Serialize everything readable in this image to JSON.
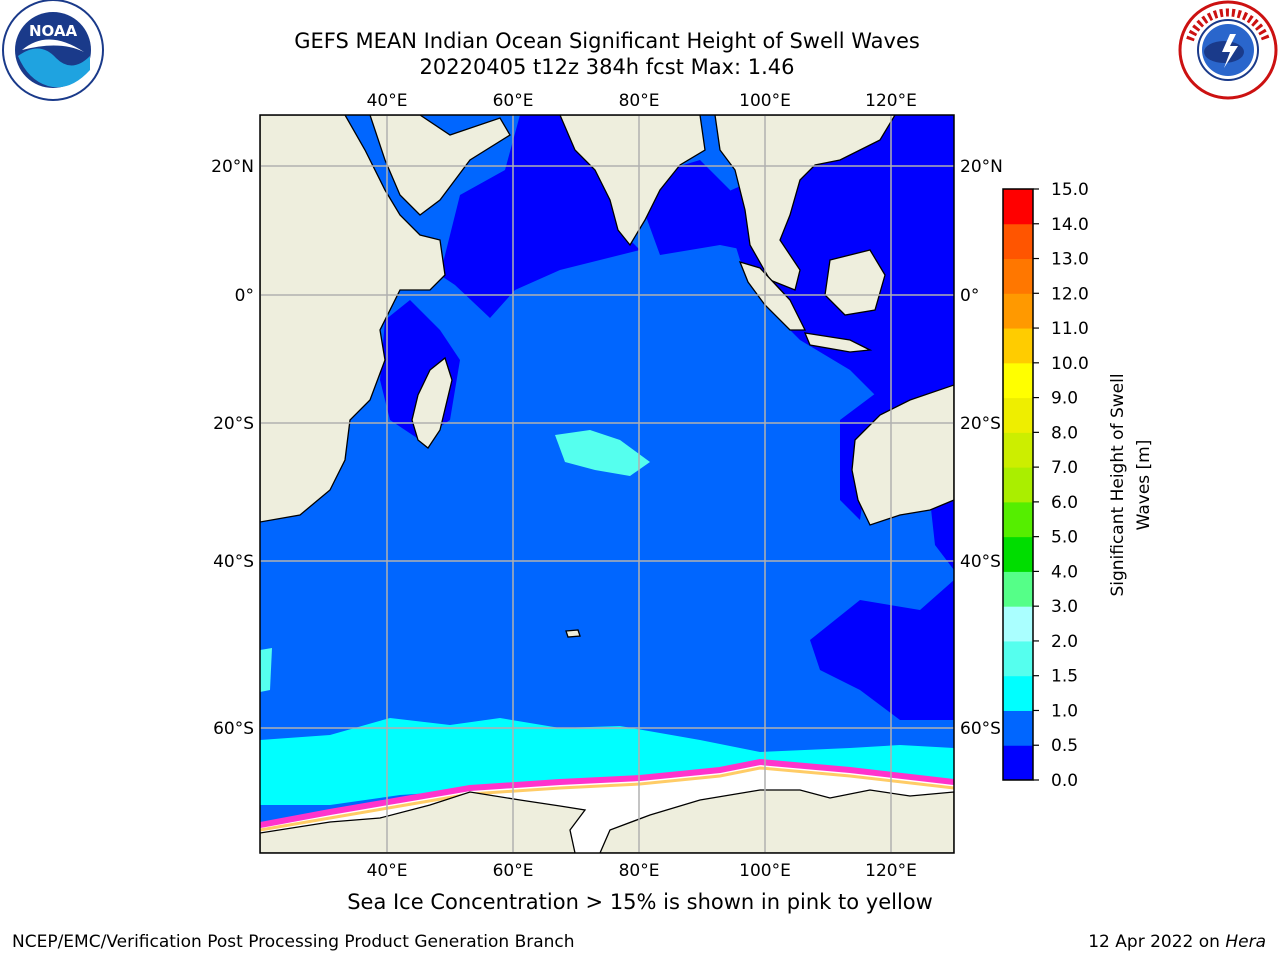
{
  "title_line1": "GEFS MEAN Indian Ocean Significant Height of Swell Waves",
  "title_line2": "20220405 t12z 384h fcst   Max: 1.46",
  "lon_ticks": [
    "40°E",
    "60°E",
    "80°E",
    "100°E",
    "120°E"
  ],
  "lat_ticks_left": [
    "20°N",
    "0°",
    "20°S",
    "40°S",
    "60°S"
  ],
  "lat_ticks_right": [
    "20°N",
    "0°",
    "20°S",
    "40°S",
    "60°S"
  ],
  "colorbar": {
    "label": "Significant Height of Swell Waves [m]",
    "ticks": [
      "0.0",
      "0.5",
      "1.0",
      "1.5",
      "2.0",
      "3.0",
      "4.0",
      "5.0",
      "6.0",
      "7.0",
      "8.0",
      "9.0",
      "10.0",
      "11.0",
      "12.0",
      "13.0",
      "14.0",
      "15.0"
    ],
    "colors": [
      "#0000ff",
      "#0066ff",
      "#00ffff",
      "#55ffee",
      "#aaffff",
      "#55ff88",
      "#00dd00",
      "#55ee00",
      "#aaee00",
      "#ccee00",
      "#eeee00",
      "#ffff00",
      "#ffcc00",
      "#ff9900",
      "#ff7700",
      "#ff5500",
      "#ff0000"
    ]
  },
  "sea_ice_note": "Sea Ice Concentration > 15% is shown in pink to yellow",
  "footer_left": "NCEP/EMC/Verification Post Processing Product Generation Branch",
  "footer_date": "12 Apr 2022 on",
  "footer_host": "Hera",
  "colors": {
    "land": "#eeeedd",
    "ocean_low": "#0000ff",
    "ocean_mid": "#0066ff",
    "swell_high": "#00ffff",
    "ice": "#ffffff",
    "ice_edge": "#ff33cc"
  },
  "logos": [
    "noaa-logo",
    "national-weather-service-logo"
  ]
}
